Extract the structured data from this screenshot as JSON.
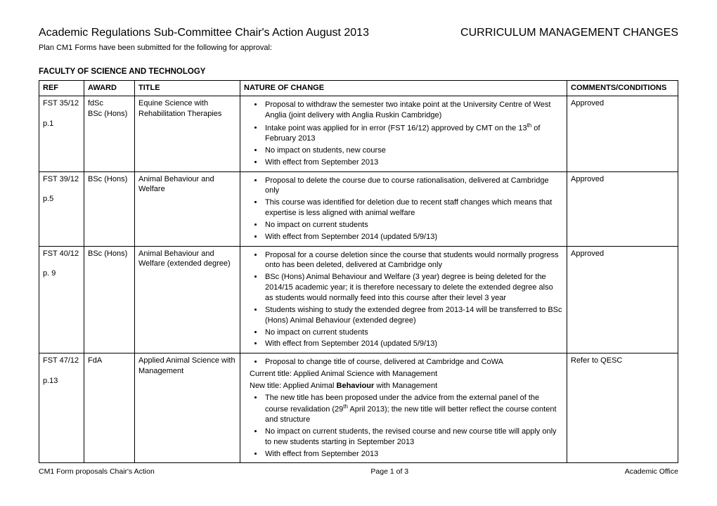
{
  "header": {
    "left": "Academic Regulations Sub-Committee Chair's Action August 2013",
    "right": "CURRICULUM MANAGEMENT CHANGES"
  },
  "subtext": "Plan CM1 Forms have been submitted for the following for approval:",
  "faculty": "FACULTY OF SCIENCE AND TECHNOLOGY",
  "columns": {
    "ref": "REF",
    "award": "AWARD",
    "title": "TITLE",
    "nature": "NATURE OF CHANGE",
    "comments": "COMMENTS/CONDITIONS"
  },
  "rows": [
    {
      "ref": "FST 35/12",
      "page": "p.1",
      "award": "fdSc\nBSc (Hons)",
      "title": "Equine Science with Rehabilitation Therapies",
      "bullets": [
        "Proposal to withdraw the semester two intake point at the University Centre of West Anglia (joint delivery with Anglia Ruskin Cambridge)",
        "Intake point was applied for in error (FST 16/12) approved by CMT on the 13{SUP}th{/SUP} of February 2013",
        "No impact on students, new course",
        "With effect from September 2013"
      ],
      "comments": "Approved"
    },
    {
      "ref": "FST 39/12",
      "page": "p.5",
      "award": "BSc (Hons)",
      "title": "Animal Behaviour and Welfare",
      "bullets": [
        "Proposal to delete the course due to course rationalisation, delivered at Cambridge only",
        "This course was identified for deletion due to recent staff changes which means that expertise is less aligned with animal welfare",
        "No impact on current students",
        "With effect from September 2014 (updated 5/9/13)"
      ],
      "comments": "Approved"
    },
    {
      "ref": "FST 40/12",
      "page": "p. 9",
      "award": "BSc (Hons)",
      "title": "Animal Behaviour and Welfare (extended degree)",
      "bullets": [
        "Proposal for a course deletion since the course that students would normally progress onto has been deleted, delivered at Cambridge only",
        "BSc (Hons) Animal Behaviour and Welfare (3 year) degree is being deleted for the 2014/15 academic year; it is therefore necessary to delete the extended degree also as students would normally feed into this course after their level 3 year",
        "Students wishing to study the extended degree from 2013-14 will be transferred to BSc (Hons) Animal Behaviour (extended degree)",
        "No impact on current students",
        "With effect from September 2014 (updated 5/9/13)"
      ],
      "comments": "Approved"
    },
    {
      "ref": "FST 47/12",
      "page": "p.13",
      "award": "FdA",
      "title": "Applied Animal Science with Management",
      "bullets_top": [
        "Proposal to change title of course, delivered at Cambridge and CoWA"
      ],
      "lines": [
        "Current title: Applied Animal Science with Management",
        "New title: Applied Animal {B}Behaviour{/B} with Management"
      ],
      "bullets_bottom": [
        "The new title has been proposed under the advice from the external panel of the course revalidation (29{SUP}th{/SUP} April 2013); the new title will better reflect the course content and structure",
        "No impact on current students, the revised course and new course title will apply only to new students starting in September 2013",
        "With effect from September 2013"
      ],
      "comments": "Refer to QESC"
    }
  ],
  "footer": {
    "left": "CM1 Form proposals Chair's Action",
    "center": "Page 1 of 3",
    "right": "Academic Office"
  }
}
